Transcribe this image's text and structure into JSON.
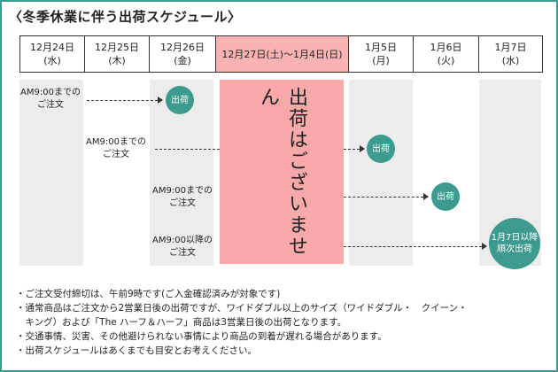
{
  "title": "〈冬季休業に伴う出荷スケジュール〉",
  "columns": [
    {
      "date": "12月24日",
      "day": "(水)",
      "highlight": false
    },
    {
      "date": "12月25日",
      "day": "(木)",
      "highlight": false
    },
    {
      "date": "12月26日",
      "day": "(金)",
      "highlight": false
    },
    {
      "date": "12月27日(土)〜1月4日(日)",
      "day": "",
      "highlight": true
    },
    {
      "date": "1月5日",
      "day": "(月)",
      "highlight": false
    },
    {
      "date": "1月6日",
      "day": "(火)",
      "highlight": false
    },
    {
      "date": "1月7日",
      "day": "(水)",
      "highlight": false
    }
  ],
  "closed_text": "出荷はございません",
  "rows": [
    {
      "note_line1": "AM9:00までの",
      "note_line2": "ご注文",
      "ship_label": "出荷"
    },
    {
      "note_line1": "AM9:00までの",
      "note_line2": "ご注文",
      "ship_label": "出荷"
    },
    {
      "note_line1": "AM9:00までの",
      "note_line2": "ご注文",
      "ship_label": "出荷"
    },
    {
      "note_line1": "AM9:00以降の",
      "note_line2": "ご注文",
      "ship_label_line1": "1月7日以降",
      "ship_label_line2": "順次出荷"
    }
  ],
  "footer": [
    "・ご注文受付締切は、午前9時です(ご入金確認済みが対象です)",
    "・通常商品はご注文から2営業日後の出荷ですが、ワイドダブル以上のサイズ（ワイドダブル・　クイーン・",
    "　キング）および「The ハーフ＆ハーフ」商品は3営業日後の出荷となります。",
    "・交通事情、災害、その他避けられない事情により商品の到着が遅れる場合があります。",
    "・出荷スケジュールはあくまでも目安とお考えください。"
  ],
  "colors": {
    "accent": "#3d9a8e",
    "closed": "#f9a9a9"
  }
}
